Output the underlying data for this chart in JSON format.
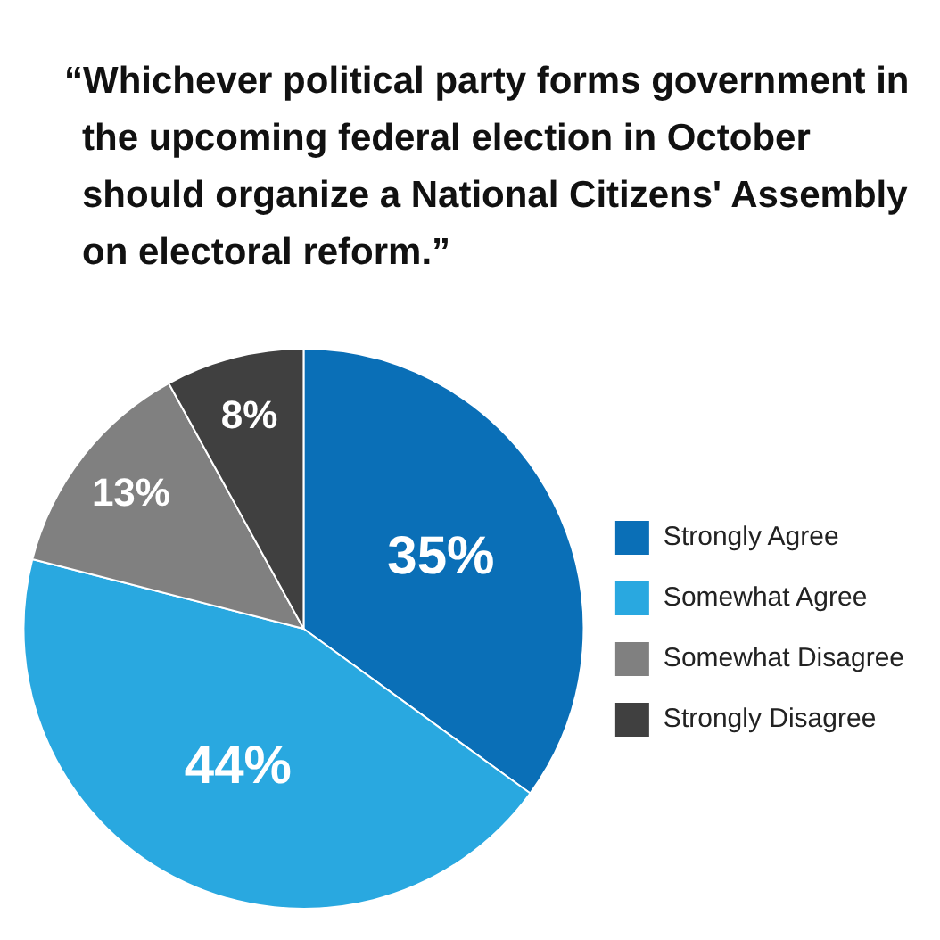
{
  "chart_data": {
    "type": "pie",
    "title": "“Whichever political party forms government in the upcoming federal election in October should organize a National Citizens' Assembly on electoral reform.”",
    "categories": [
      "Strongly Agree",
      "Somewhat Agree",
      "Somewhat Disagree",
      "Strongly Disagree"
    ],
    "values": [
      35,
      44,
      13,
      8
    ],
    "colors": [
      "#0a6fb7",
      "#29a8e0",
      "#808080",
      "#404040"
    ],
    "value_labels": [
      "35%",
      "44%",
      "13%",
      "8%"
    ],
    "legend": "right"
  }
}
